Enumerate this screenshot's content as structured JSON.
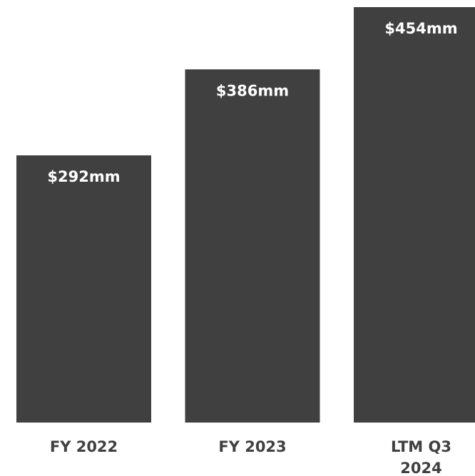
{
  "chart_data": {
    "type": "bar",
    "categories": [
      "FY 2022",
      "FY 2023",
      "LTM Q3 2024"
    ],
    "values": [
      292,
      386,
      454
    ],
    "value_labels": [
      "$292mm",
      "$386mm",
      "$454mm"
    ],
    "color": "#404040"
  }
}
